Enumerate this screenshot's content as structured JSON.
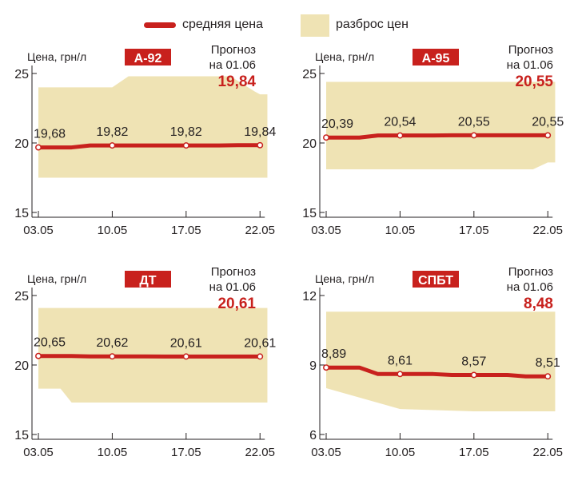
{
  "legend": {
    "line_label": "средняя цена",
    "band_label": "разброс цен"
  },
  "colors": {
    "line": "#c8211d",
    "band": "#efe3b4",
    "axis": "#231f20",
    "badge": "#c8211d",
    "forecast_value": "#c8211d"
  },
  "chart_data": [
    {
      "type": "line",
      "fuel": "А-92",
      "ylabel": "Цена, грн/л",
      "yticks": [
        25,
        20,
        15
      ],
      "ylim": [
        15,
        25
      ],
      "categories": [
        "03.05",
        "10.05",
        "17.05",
        "22.05"
      ],
      "series": [
        {
          "name": "средняя цена",
          "values": [
            19.68,
            19.82,
            19.82,
            19.84
          ]
        }
      ],
      "value_labels": [
        "19,68",
        "19,82",
        "19,82",
        "19,84"
      ],
      "band": {
        "x": [
          0,
          0.12,
          0.33,
          1,
          1.22,
          1.33,
          2,
          2.6,
          2.93,
          3,
          3.1
        ],
        "upper": [
          24.0,
          24.0,
          24.0,
          24.0,
          24.8,
          24.8,
          24.8,
          24.8,
          23.7,
          23.5,
          23.5
        ],
        "lower": [
          17.5,
          17.5,
          17.5,
          17.5,
          17.5,
          17.5,
          17.5,
          17.5,
          17.5,
          17.5,
          17.5
        ]
      },
      "forecast_title": "Прогноз",
      "forecast_date": "на 01.06",
      "forecast_value": "19,84"
    },
    {
      "type": "line",
      "fuel": "А-95",
      "ylabel": "Цена, грн/л",
      "yticks": [
        25,
        20,
        15
      ],
      "ylim": [
        15,
        25
      ],
      "categories": [
        "03.05",
        "10.05",
        "17.05",
        "22.05"
      ],
      "series": [
        {
          "name": "средняя цена",
          "values": [
            20.39,
            20.54,
            20.55,
            20.55
          ]
        }
      ],
      "value_labels": [
        "20,39",
        "20,54",
        "20,55",
        "20,55"
      ],
      "band": {
        "x": [
          0,
          0.5,
          1,
          1.5,
          2,
          2.5,
          2.8,
          3,
          3.1
        ],
        "upper": [
          24.4,
          24.4,
          24.4,
          24.4,
          24.4,
          24.4,
          24.4,
          24.4,
          24.4
        ],
        "lower": [
          18.1,
          18.1,
          18.1,
          18.1,
          18.1,
          18.1,
          18.1,
          18.6,
          18.6
        ]
      },
      "forecast_title": "Прогноз",
      "forecast_date": "на 01.06",
      "forecast_value": "20,55"
    },
    {
      "type": "line",
      "fuel": "ДТ",
      "ylabel": "Цена, грн/л",
      "yticks": [
        25,
        20,
        15
      ],
      "ylim": [
        15,
        25
      ],
      "categories": [
        "03.05",
        "10.05",
        "17.05",
        "22.05"
      ],
      "series": [
        {
          "name": "средняя цена",
          "values": [
            20.65,
            20.62,
            20.61,
            20.61
          ]
        }
      ],
      "value_labels": [
        "20,65",
        "20,62",
        "20,61",
        "20,61"
      ],
      "band": {
        "x": [
          0,
          0.3,
          0.45,
          1,
          2,
          3,
          3.1
        ],
        "upper": [
          24.1,
          24.1,
          24.1,
          24.1,
          24.1,
          24.1,
          24.1
        ],
        "lower": [
          18.3,
          18.3,
          17.3,
          17.3,
          17.3,
          17.3,
          17.3
        ]
      },
      "forecast_title": "Прогноз",
      "forecast_date": "на 01.06",
      "forecast_value": "20,61"
    },
    {
      "type": "line",
      "fuel": "СПБТ",
      "ylabel": "Цена, грн/л",
      "yticks": [
        12,
        9,
        6
      ],
      "ylim": [
        6,
        12
      ],
      "categories": [
        "03.05",
        "10.05",
        "17.05",
        "22.05"
      ],
      "series": [
        {
          "name": "средняя цена",
          "values": [
            8.89,
            8.61,
            8.57,
            8.51
          ]
        }
      ],
      "value_labels": [
        "8,89",
        "8,61",
        "8,57",
        "8,51"
      ],
      "band": {
        "x": [
          0,
          1,
          2,
          3,
          3.1
        ],
        "upper": [
          11.3,
          11.3,
          11.3,
          11.3,
          11.3
        ],
        "lower": [
          8.0,
          7.1,
          7.0,
          7.0,
          7.0
        ]
      },
      "forecast_title": "Прогноз",
      "forecast_date": "на 01.06",
      "forecast_value": "8,48"
    }
  ]
}
